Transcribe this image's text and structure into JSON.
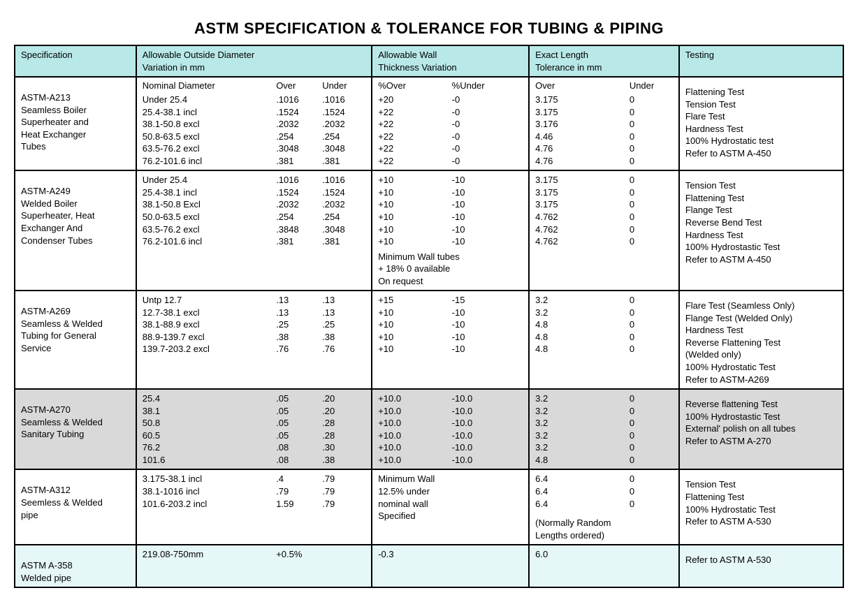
{
  "title": "ASTM SPECIFICATION & TOLERANCE FOR TUBING & PIPING",
  "headers": {
    "spec": "Specification",
    "od": "Allowable Outside Diameter\nVariation in mm",
    "wall": "Allowable Wall\nThickness Variation",
    "len": "Exact Length\nTolerance in mm",
    "test": "Testing"
  },
  "subheaders": {
    "od_nom": "Nominal Diameter",
    "od_over": "Over",
    "od_under": "Under",
    "wall_over": "%Over",
    "wall_under": "%Under",
    "len_over": "Over",
    "len_under": "Under"
  },
  "rows": [
    {
      "id": "a213",
      "spec": "ASTM-A213\nSeamless Boiler\nSuperheater and\nHeat Exchanger\nTubes",
      "od_nom": [
        "Under 25.4",
        "25.4-38.1 incl",
        "38.1-50.8 excl",
        "50.8-63.5 excl",
        "63.5-76.2 excl",
        "76.2-101.6 incl"
      ],
      "od_over": [
        ".1016",
        ".1524",
        ".2032",
        ".254",
        ".3048",
        ".381"
      ],
      "od_under": [
        ".1016",
        ".1524",
        ".2032",
        ".254",
        ".3048",
        ".381"
      ],
      "wall_over": [
        "+20",
        "+22",
        "+22",
        "+22",
        "+22",
        "+22"
      ],
      "wall_under": [
        "-0",
        "-0",
        "-0",
        "-0",
        "-0",
        "-0"
      ],
      "len_over": [
        "3.175",
        "3.175",
        "3.176",
        "4.46",
        "4.76",
        "4.76"
      ],
      "len_under": [
        "0",
        "0",
        "0",
        "0",
        "0",
        "0"
      ],
      "tests": [
        "Flattening Test",
        "Tension Test",
        "Flare Test",
        "Hardness Test",
        "100% Hydrostatic test",
        "Refer to ASTM A-450"
      ],
      "show_subheaders": true
    },
    {
      "id": "a249",
      "spec": "ASTM-A249\nWelded Boiler\nSuperheater, Heat\nExchanger And\nCondenser Tubes",
      "od_nom": [
        "Under 25.4",
        "25.4-38.1 incl",
        "38.1-50.8 Excl",
        "50.0-63.5 excl",
        "63.5-76.2 excl",
        "76.2-101.6 incl"
      ],
      "od_over": [
        ".1016",
        ".1524",
        ".2032",
        ".254",
        ".3848",
        ".381"
      ],
      "od_under": [
        ".1016",
        ".1524",
        ".2032",
        ".254",
        ".3048",
        ".381"
      ],
      "wall_over": [
        "+10",
        "+10",
        "+10",
        "+10",
        "+10",
        "+10"
      ],
      "wall_under": [
        "-10",
        "-10",
        "-10",
        "-10",
        "-10",
        "-10"
      ],
      "wall_extra": "Minimum Wall tubes\n+ 18% 0 available\nOn request",
      "len_over": [
        "3.175",
        "3.175",
        "3.175",
        "4.762",
        "4.762",
        "4.762"
      ],
      "len_under": [
        "0",
        "0",
        "0",
        "0",
        "0",
        "0"
      ],
      "tests": [
        "Tension Test",
        "Flattening Test",
        "Flange Test",
        "Reverse Bend Test",
        "Hardness Test",
        "100% Hydrostastic Test",
        "Refer to ASTM A-450"
      ]
    },
    {
      "id": "a269",
      "spec": "ASTM-A269\nSeamless & Welded\nTubing for General\nService",
      "od_nom": [
        "Untp 12.7",
        "12.7-38.1 excl",
        "38.1-88.9 excl",
        "88.9-139.7 excl",
        "139.7-203.2 excl"
      ],
      "od_over": [
        ".13",
        ".13",
        ".25",
        ".38",
        ".76"
      ],
      "od_under": [
        ".13",
        ".13",
        ".25",
        ".38",
        ".76"
      ],
      "wall_over": [
        "+15",
        "+10",
        "+10",
        "+10",
        "+10"
      ],
      "wall_under": [
        "-15",
        "-10",
        "-10",
        "-10",
        "-10"
      ],
      "len_over": [
        "3.2",
        "3.2",
        "4.8",
        "4.8",
        "4.8"
      ],
      "len_under": [
        "0",
        "0",
        "0",
        "0",
        "0"
      ],
      "tests": [
        "Flare Test (Seamless Only)",
        "Flange Test (Welded Only)",
        "Hardness Test",
        "Reverse Flattening Test",
        "(Welded only)",
        "100% Hydrostatic Test",
        "Refer to ASTM-A269"
      ]
    },
    {
      "id": "a270",
      "shade": true,
      "spec": "ASTM-A270\nSeamless & Welded\nSanitary Tubing",
      "od_nom": [
        "25.4",
        "38.1",
        "50.8",
        "60.5",
        "76.2",
        "101.6"
      ],
      "od_over": [
        ".05",
        ".05",
        ".05",
        ".05",
        ".08",
        ".08"
      ],
      "od_under": [
        ".20",
        ".20",
        ".28",
        ".28",
        ".30",
        ".38"
      ],
      "wall_over": [
        "+10.0",
        "+10.0",
        "+10.0",
        "+10.0",
        "+10.0",
        "+10.0"
      ],
      "wall_under": [
        "-10.0",
        "-10.0",
        "-10.0",
        "-10.0",
        "-10.0",
        "-10.0"
      ],
      "len_over": [
        "3.2",
        "3.2",
        "3.2",
        "3.2",
        "3.2",
        "4.8"
      ],
      "len_under": [
        "0",
        "0",
        "0",
        "0",
        "0",
        "0"
      ],
      "tests": [
        "Reverse flattening Test",
        "100% Hydrostastic Test",
        "External' polish on all tubes",
        "Refer to ASTM A-270"
      ]
    },
    {
      "id": "a312",
      "spec": "ASTM-A312\nSeemless & Welded\npipe",
      "od_nom": [
        "3.175-38.1 incl",
        "38.1-1016 incl",
        "101.6-203.2 incl"
      ],
      "od_over": [
        ".4",
        ".79",
        "1.59"
      ],
      "od_under": [
        ".79",
        ".79",
        ".79"
      ],
      "wall_plain": "Minimum Wall\n12.5% under\nnominal wall\nSpecified",
      "len_over": [
        "6.4",
        "6.4",
        "6.4"
      ],
      "len_under": [
        "0",
        "0",
        "0"
      ],
      "len_extra": "(Normally Random\nLengths ordered)",
      "tests": [
        "Tension Test",
        "Flattening Test",
        "100% Hydrostatic Test",
        "Refer to ASTM A-530"
      ]
    },
    {
      "id": "a358",
      "alt": true,
      "spec": "ASTM A-358\nWelded pipe",
      "od_plain_nom": "219.08-750mm",
      "od_plain_over": "+0.5%",
      "wall_single": "-0.3",
      "len_single": "6.0",
      "tests": [
        "Refer to ASTM A-530"
      ]
    }
  ]
}
